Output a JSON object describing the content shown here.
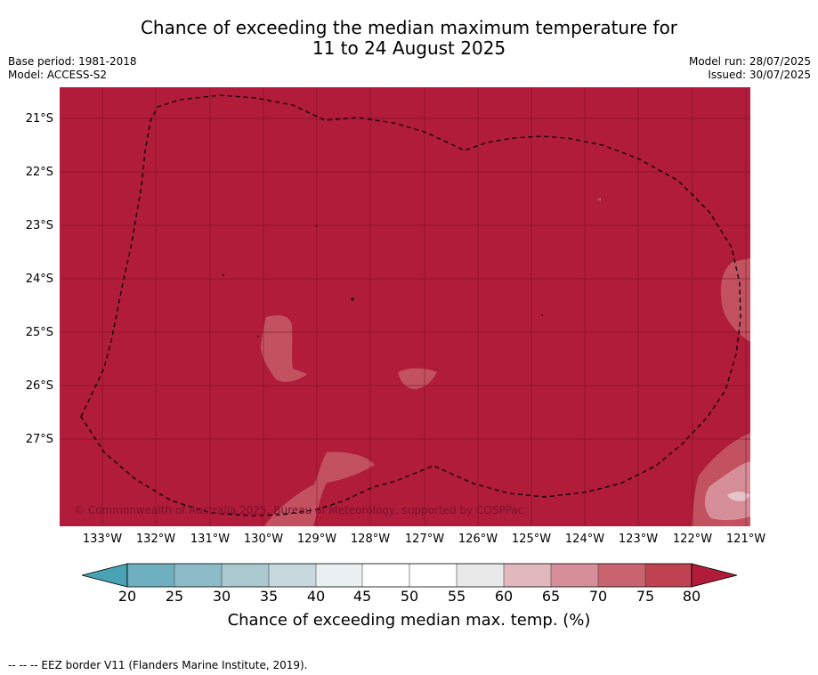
{
  "title": {
    "line1": "Chance of exceeding the median maximum temperature for",
    "line2": "11 to 24 August 2025"
  },
  "meta_left": {
    "base_period": "Base period: 1981-2018",
    "model": "Model: ACCESS-S2"
  },
  "meta_right": {
    "model_run": "Model run: 28/07/2025",
    "issued": "Issued: 30/07/2025"
  },
  "map": {
    "background_color": "#b01c3a",
    "copyright": "© Commonwealth of Australia 2025, Bureau of Meteorology, supported by COSPPac",
    "lat_labels": [
      "21°S",
      "22°S",
      "23°S",
      "24°S",
      "25°S",
      "26°S",
      "27°S"
    ],
    "lon_labels": [
      "133°W",
      "132°W",
      "131°W",
      "130°W",
      "129°W",
      "128°W",
      "127°W",
      "126°W",
      "125°W",
      "124°W",
      "123°W",
      "122°W",
      "121°W"
    ]
  },
  "colorbar": {
    "ticks": [
      "20",
      "25",
      "30",
      "35",
      "40",
      "45",
      "50",
      "55",
      "60",
      "65",
      "70",
      "75",
      "80"
    ],
    "colors": [
      "#6fb0c0",
      "#8dbbc7",
      "#a9c9cf",
      "#c8d9dd",
      "#eaf0f1",
      "#ffffff",
      "#ffffff",
      "#e9e9e9",
      "#e2b8bf",
      "#d68f99",
      "#c9636f",
      "#bf4252"
    ],
    "low_extend_color": "#4aa3b5",
    "high_extend_color": "#b01c3a",
    "label": "Chance of exceeding median max. temp. (%)"
  },
  "footer": "-- -- -- EEZ border V11 (Flanders Marine Institute, 2019)."
}
